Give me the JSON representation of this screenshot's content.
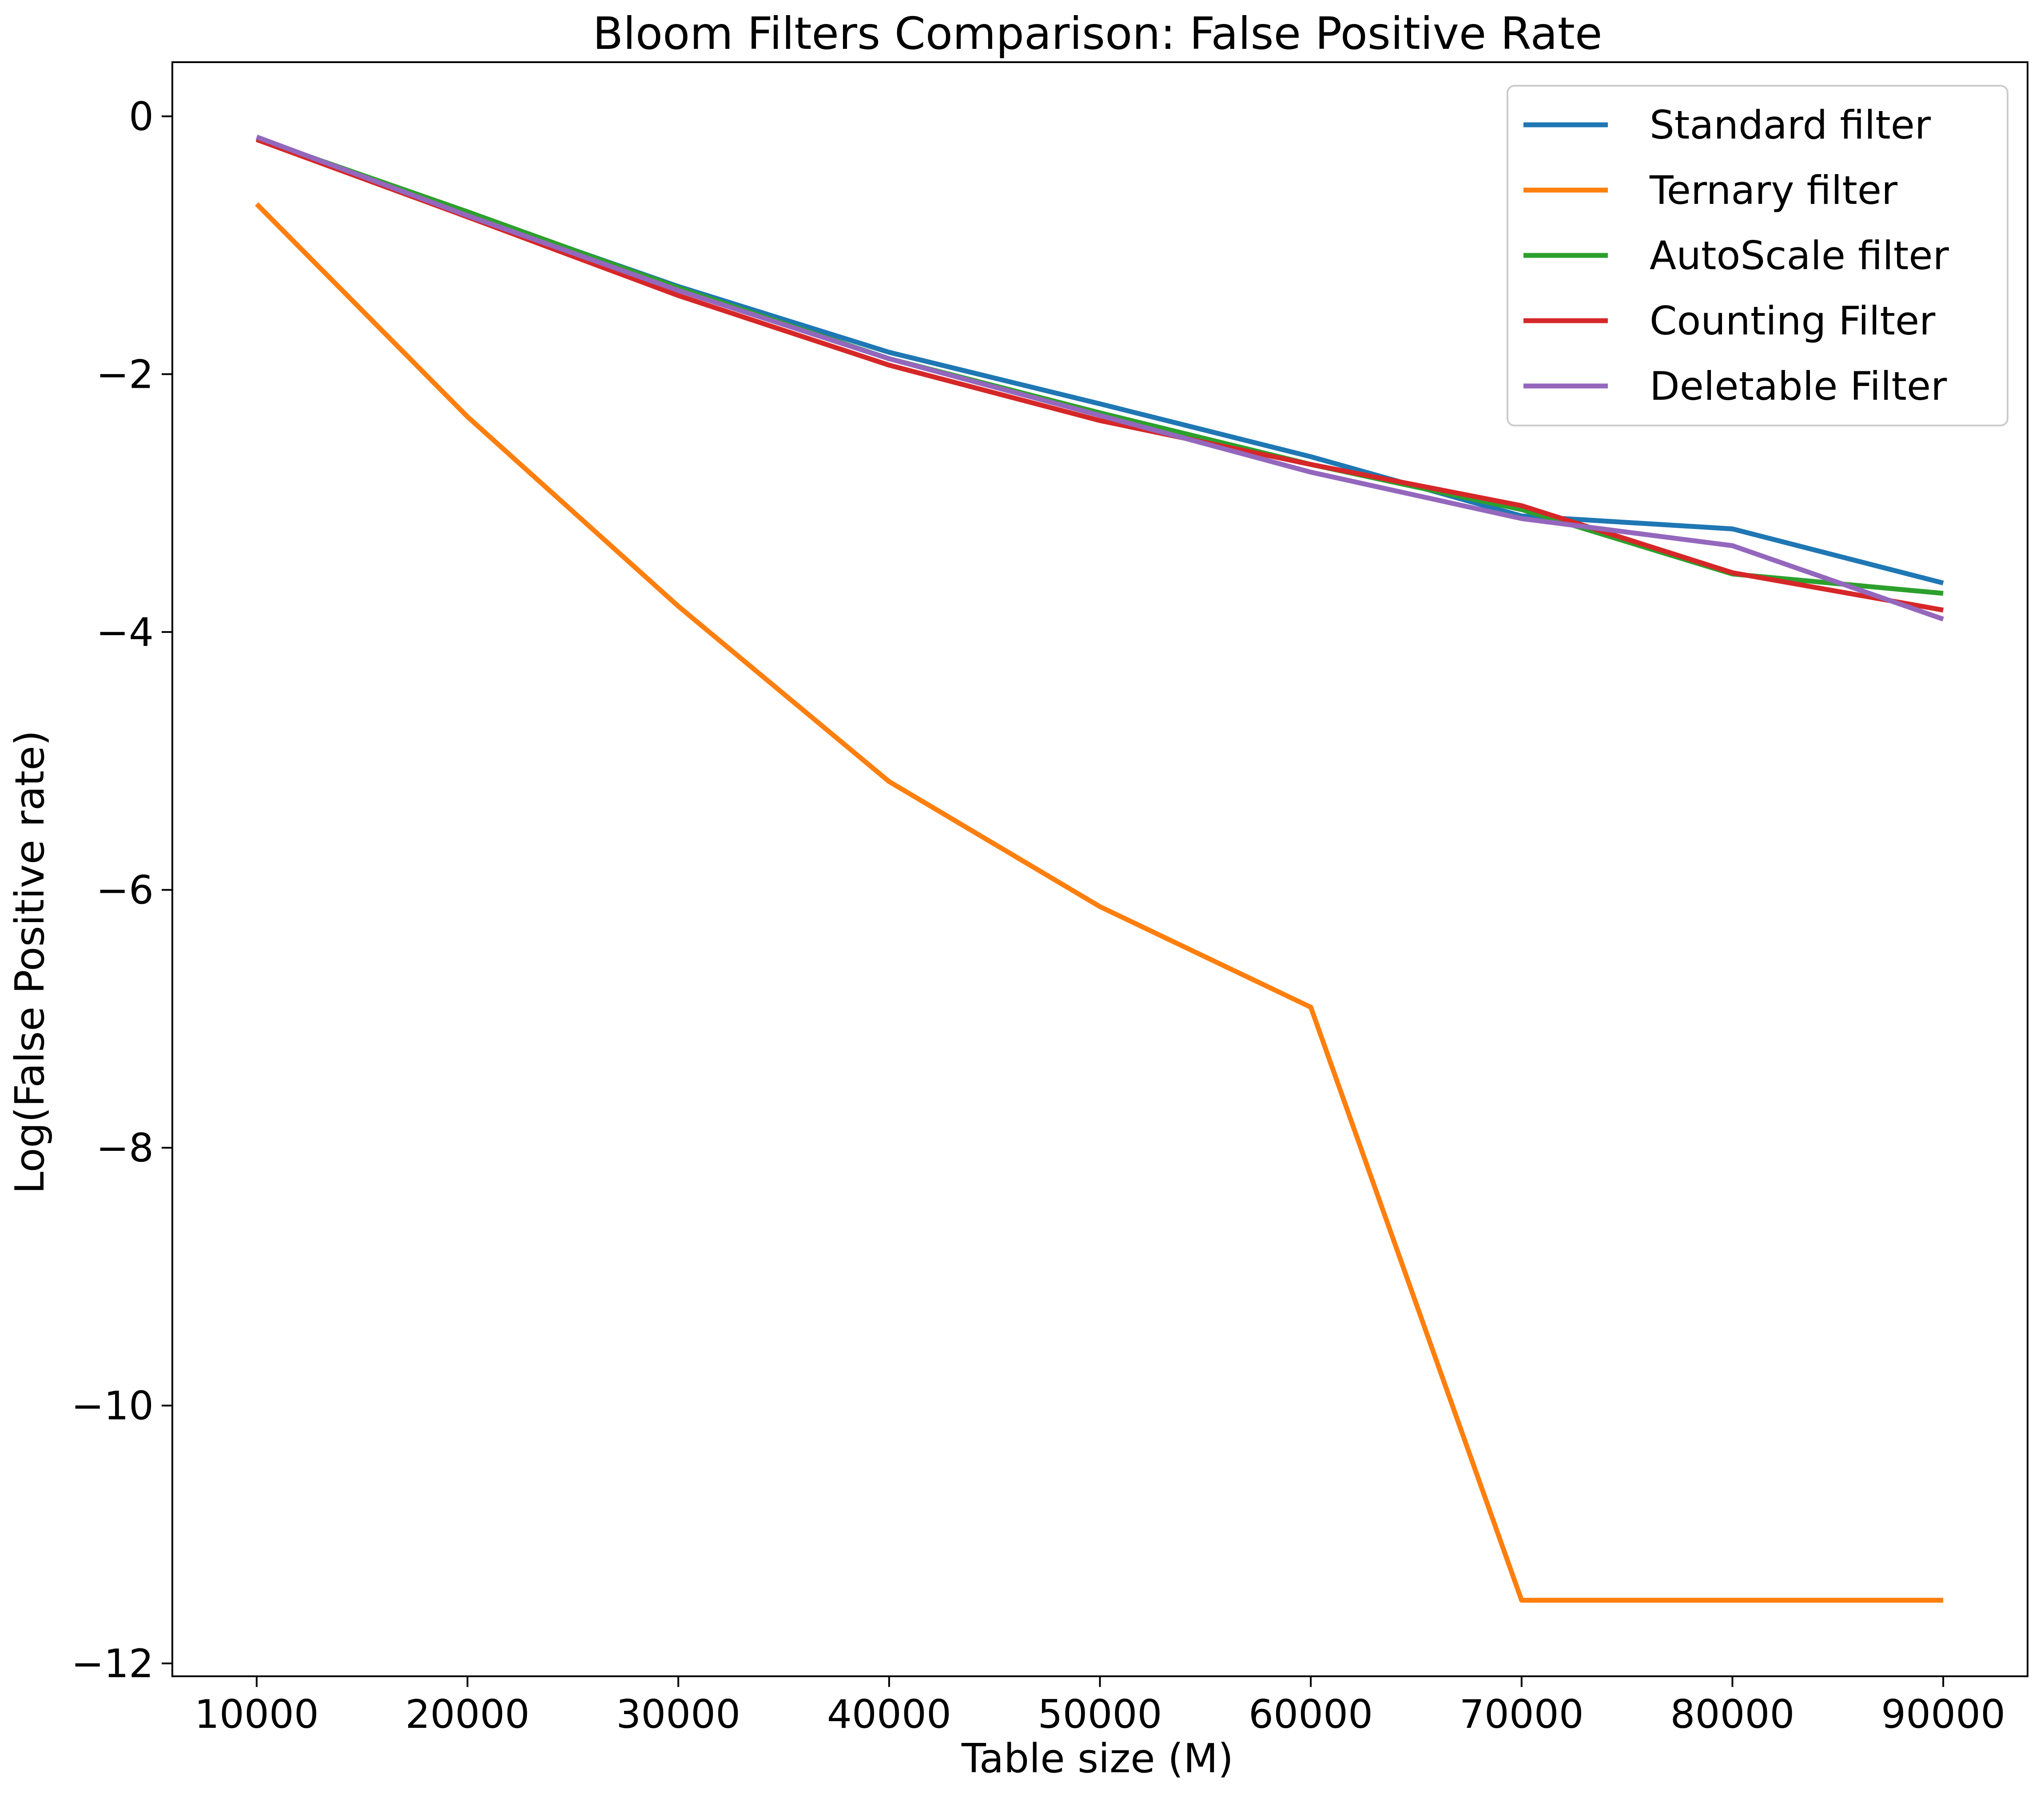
{
  "chart_data": {
    "type": "line",
    "title": "Bloom Filters Comparison: False Positive Rate",
    "xlabel": "Table size (M)",
    "ylabel": "Log(False Positive rate)",
    "xlim": [
      6000,
      94000
    ],
    "ylim": [
      -12.1,
      0.42
    ],
    "x_ticks": [
      10000,
      20000,
      30000,
      40000,
      50000,
      60000,
      70000,
      80000,
      90000
    ],
    "y_ticks": [
      0,
      -2,
      -4,
      -6,
      -8,
      -10,
      -12
    ],
    "x_tick_labels": [
      "10000",
      "20000",
      "30000",
      "40000",
      "50000",
      "60000",
      "70000",
      "80000",
      "90000"
    ],
    "y_tick_labels": [
      "0",
      "−2",
      "−4",
      "−6",
      "−8",
      "−10",
      "−12"
    ],
    "grid": false,
    "legend": "top-right",
    "x": [
      10000,
      20000,
      30000,
      40000,
      50000,
      60000,
      70000,
      80000,
      90000
    ],
    "series": [
      {
        "name": "Standard filter",
        "color": "#1f77b4",
        "values": [
          -0.18,
          -0.75,
          -1.32,
          -1.83,
          -2.23,
          -2.64,
          -3.1,
          -3.2,
          -3.62
        ]
      },
      {
        "name": "Ternary filter",
        "color": "#ff7f0e",
        "values": [
          -0.68,
          -2.33,
          -3.8,
          -5.16,
          -6.13,
          -6.91,
          -11.51,
          -11.51,
          -11.51
        ]
      },
      {
        "name": "AutoScale filter",
        "color": "#2ca02c",
        "values": [
          -0.17,
          -0.74,
          -1.33,
          -1.88,
          -2.3,
          -2.7,
          -3.05,
          -3.55,
          -3.7
        ]
      },
      {
        "name": "Counting Filter",
        "color": "#d62728",
        "values": [
          -0.18,
          -0.78,
          -1.39,
          -1.93,
          -2.36,
          -2.7,
          -3.02,
          -3.54,
          -3.83
        ]
      },
      {
        "name": "Deletable Filter",
        "color": "#9467bd",
        "values": [
          -0.16,
          -0.77,
          -1.35,
          -1.88,
          -2.32,
          -2.76,
          -3.12,
          -3.33,
          -3.9
        ]
      }
    ]
  }
}
